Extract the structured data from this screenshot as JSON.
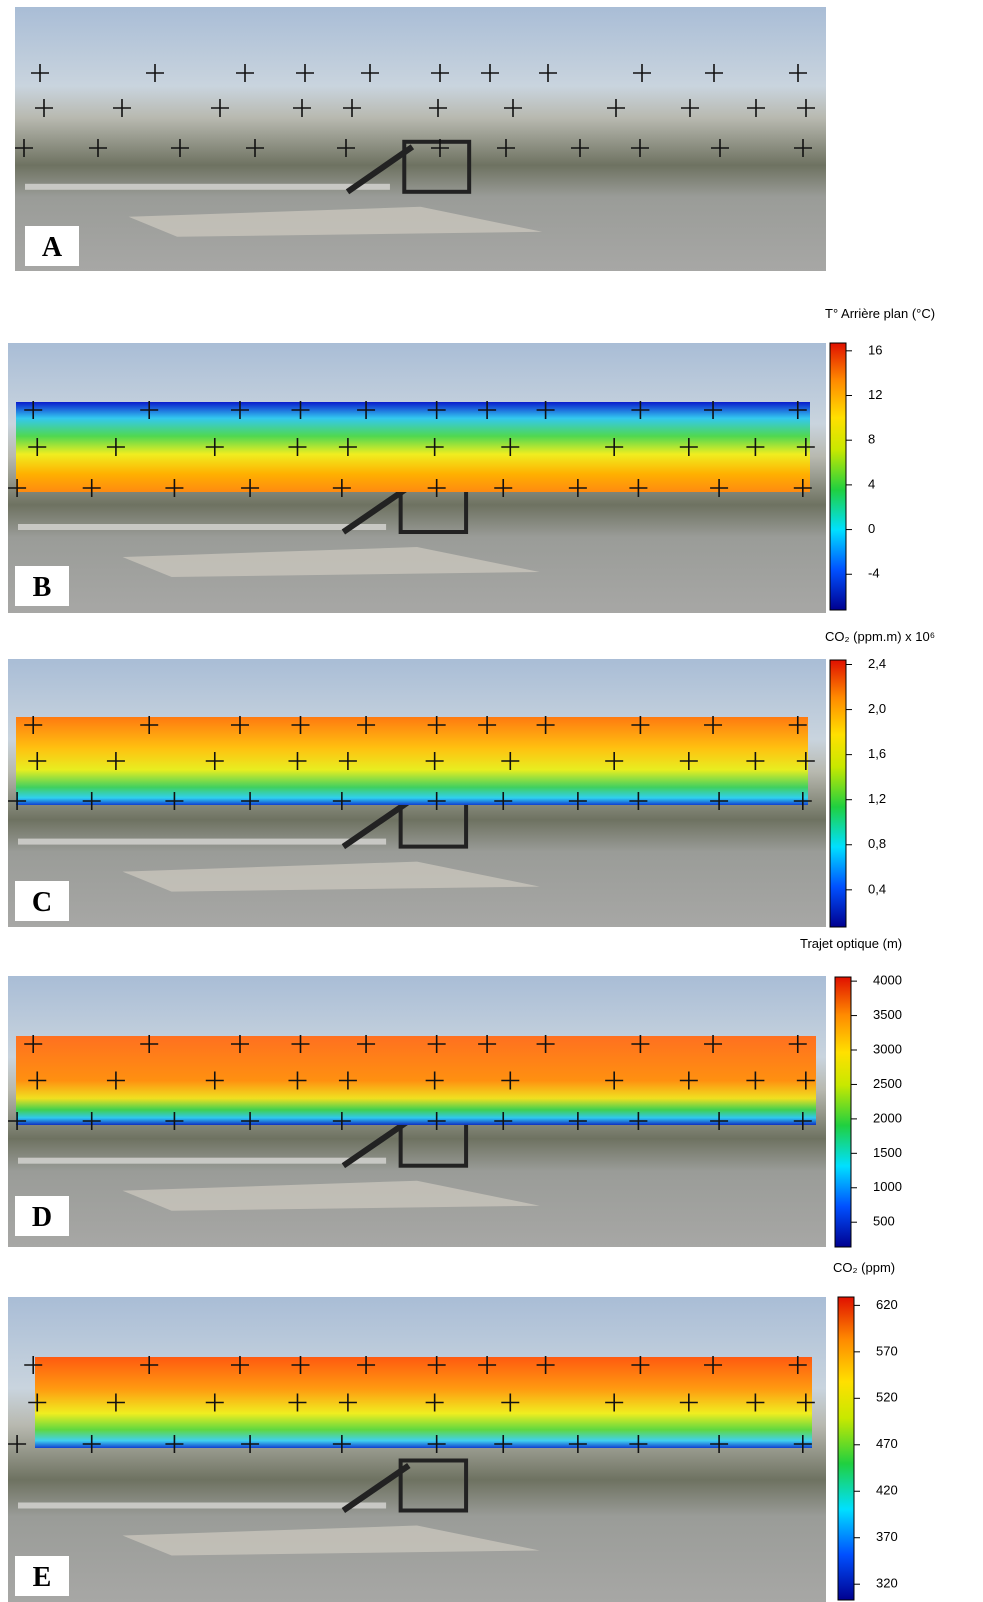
{
  "panels": [
    {
      "label": "A"
    },
    {
      "label": "B",
      "colorbar": {
        "title": "T° Arrière plan (°C)",
        "range": [
          -7.2,
          16.7
        ],
        "ticks": [
          16,
          12,
          8,
          4,
          0,
          -4
        ]
      }
    },
    {
      "label": "C",
      "colorbar": {
        "title": "CO₂ (ppm.m) x 10⁶",
        "range": [
          0.07,
          2.44
        ],
        "ticks": [
          {
            "value": 2.4,
            "label": "2,4"
          },
          {
            "value": 2.0,
            "label": "2,0"
          },
          {
            "value": 1.6,
            "label": "1,6"
          },
          {
            "value": 1.2,
            "label": "1,2"
          },
          {
            "value": 0.8,
            "label": "0,8"
          },
          {
            "value": 0.4,
            "label": "0,4"
          }
        ]
      }
    },
    {
      "label": "D",
      "colorbar": {
        "title": "Trajet optique (m)",
        "range": [
          140,
          4060
        ],
        "ticks": [
          4000,
          3500,
          3000,
          2500,
          2000,
          1500,
          1000,
          500
        ]
      }
    },
    {
      "label": "E",
      "colorbar": {
        "title": "CO₂ (ppm)",
        "range": [
          303,
          629
        ],
        "ticks": [
          620,
          570,
          520,
          470,
          420,
          370,
          320
        ]
      }
    }
  ]
}
